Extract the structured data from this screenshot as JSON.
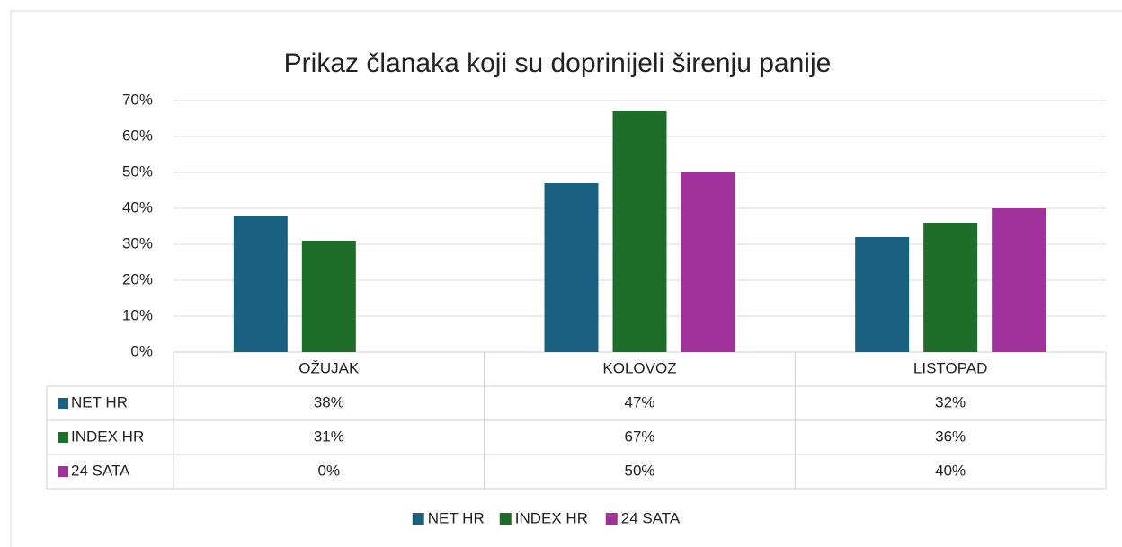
{
  "chart_data": {
    "type": "bar",
    "title": "Prikaz članaka koji su doprinijeli širenju panije",
    "categories": [
      "OŽUJAK",
      "KOLOVOZ",
      "LISTOPAD"
    ],
    "series": [
      {
        "name": "NET HR",
        "color": "#1a6080",
        "values": [
          38,
          47,
          32
        ],
        "value_labels": [
          "38%",
          "47%",
          "32%"
        ]
      },
      {
        "name": "INDEX HR",
        "color": "#1e6e29",
        "values": [
          31,
          67,
          36
        ],
        "value_labels": [
          "31%",
          "67%",
          "36%"
        ]
      },
      {
        "name": "24 SATA",
        "color": "#a0309a",
        "values": [
          0,
          50,
          40
        ],
        "value_labels": [
          "0%",
          "50%",
          "40%"
        ]
      }
    ],
    "ylim": [
      0,
      70
    ],
    "yticks": [
      {
        "value": 0,
        "label": "0%"
      },
      {
        "value": 10,
        "label": "10%"
      },
      {
        "value": 20,
        "label": "20%"
      },
      {
        "value": 30,
        "label": "30%"
      },
      {
        "value": 40,
        "label": "40%"
      },
      {
        "value": 50,
        "label": "50%"
      },
      {
        "value": 60,
        "label": "60%"
      },
      {
        "value": 70,
        "label": "70%"
      }
    ],
    "grid": true,
    "legend": "bottom"
  }
}
